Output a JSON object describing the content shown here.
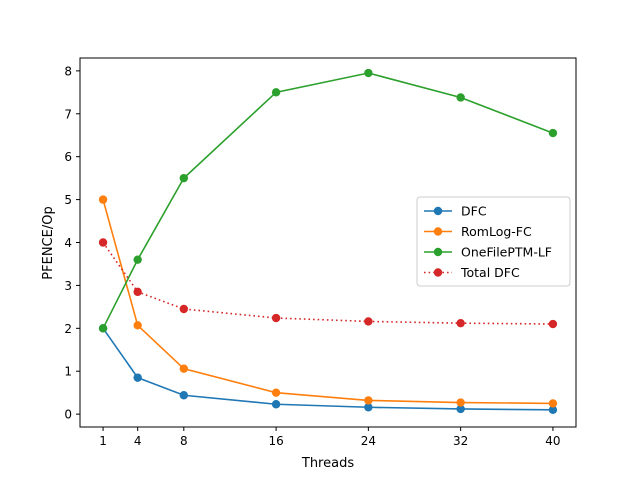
{
  "chart_data": {
    "type": "line",
    "title": "",
    "xlabel": "Threads",
    "ylabel": "PFENCE/Op",
    "x": [
      1,
      4,
      8,
      16,
      24,
      32,
      40
    ],
    "xlim": [
      -1,
      42
    ],
    "ylim": [
      -0.3,
      8.3
    ],
    "xticks": [
      1,
      4,
      8,
      16,
      24,
      32,
      40
    ],
    "yticks": [
      0,
      1,
      2,
      3,
      4,
      5,
      6,
      7,
      8
    ],
    "grid": false,
    "legend_position": "center-right",
    "series": [
      {
        "name": "DFC",
        "color": "#1f77b4",
        "style": "solid",
        "values": [
          2.0,
          0.85,
          0.44,
          0.23,
          0.16,
          0.12,
          0.1
        ]
      },
      {
        "name": "RomLog-FC",
        "color": "#ff7f0e",
        "style": "solid",
        "values": [
          5.0,
          2.07,
          1.06,
          0.5,
          0.32,
          0.27,
          0.25
        ]
      },
      {
        "name": "OneFilePTM-LF",
        "color": "#2ca02c",
        "style": "solid",
        "values": [
          2.0,
          3.6,
          5.5,
          7.5,
          7.95,
          7.38,
          6.55
        ]
      },
      {
        "name": "Total DFC",
        "color": "#d62728",
        "style": "dotted",
        "values": [
          4.0,
          2.85,
          2.45,
          2.24,
          2.16,
          2.12,
          2.1
        ]
      }
    ]
  }
}
